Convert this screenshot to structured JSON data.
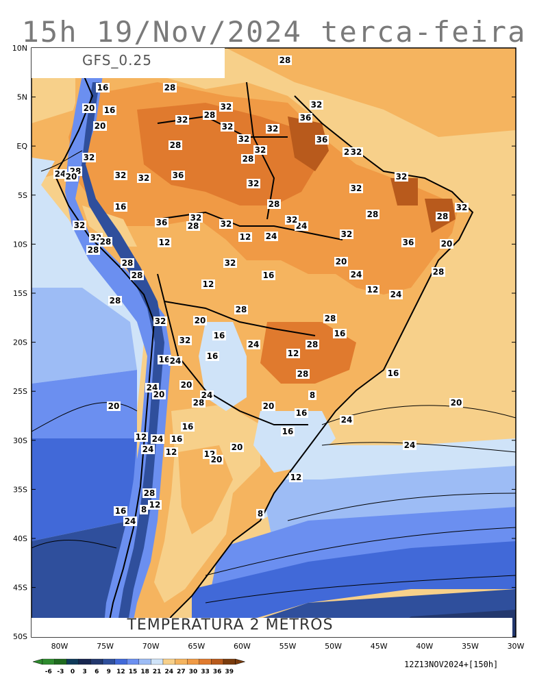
{
  "title": "15h 19/Nov/2024 terca-feira",
  "model": "GFS_0.25",
  "field": "TEMPERATURA 2 METROS",
  "run": "12Z13NOV2024+[150h]",
  "lat_labels": [
    "10N",
    "5N",
    "EQ",
    "5S",
    "10S",
    "15S",
    "20S",
    "25S",
    "30S",
    "35S",
    "40S",
    "45S",
    "50S"
  ],
  "lon_labels": [
    "80W",
    "75W",
    "70W",
    "65W",
    "60W",
    "55W",
    "50W",
    "45W",
    "40W",
    "35W",
    "30W"
  ],
  "colorbar": {
    "labels": [
      "-6",
      "-3",
      "0",
      "3",
      "6",
      "9",
      "12",
      "15",
      "18",
      "21",
      "24",
      "27",
      "30",
      "33",
      "36",
      "39"
    ],
    "colors": [
      "#2e8b2e",
      "#1f6a1f",
      "#0f3a5a",
      "#17264f",
      "#23386e",
      "#2f4f9c",
      "#4169d8",
      "#6b8ff0",
      "#9dbcf5",
      "#cfe3f8",
      "#f7d08a",
      "#f5b45f",
      "#f09a45",
      "#e07a2e",
      "#b85a1c",
      "#7a3c0d"
    ]
  },
  "contour_labels": [
    {
      "t": "28"
    },
    {
      "t": "16"
    },
    {
      "t": "28"
    },
    {
      "t": "20"
    },
    {
      "t": "16"
    },
    {
      "t": "32"
    },
    {
      "t": "28"
    },
    {
      "t": "32"
    },
    {
      "t": "32"
    },
    {
      "t": "36"
    },
    {
      "t": "20"
    },
    {
      "t": "32"
    },
    {
      "t": "32"
    },
    {
      "t": "36"
    },
    {
      "t": "32"
    },
    {
      "t": "28"
    },
    {
      "t": "32"
    },
    {
      "t": "2"
    },
    {
      "t": "32"
    },
    {
      "t": "24"
    },
    {
      "t": "28"
    },
    {
      "t": "20"
    },
    {
      "t": "32"
    },
    {
      "t": "28"
    },
    {
      "t": "32"
    },
    {
      "t": "32"
    },
    {
      "t": "36"
    },
    {
      "t": "32"
    },
    {
      "t": "32"
    },
    {
      "t": "32"
    },
    {
      "t": "16"
    },
    {
      "t": "28"
    },
    {
      "t": "28"
    },
    {
      "t": "32"
    },
    {
      "t": "28"
    },
    {
      "t": "32"
    },
    {
      "t": "36"
    },
    {
      "t": "24"
    },
    {
      "t": "28"
    },
    {
      "t": "32"
    },
    {
      "t": "32"
    },
    {
      "t": "32"
    },
    {
      "t": "12"
    },
    {
      "t": "24"
    },
    {
      "t": "32"
    },
    {
      "t": "36"
    },
    {
      "t": "20"
    },
    {
      "t": "32"
    },
    {
      "t": "28"
    },
    {
      "t": "12"
    },
    {
      "t": "28"
    },
    {
      "t": "32"
    },
    {
      "t": "28"
    },
    {
      "t": "20"
    },
    {
      "t": "28"
    },
    {
      "t": "24"
    },
    {
      "t": "12"
    },
    {
      "t": "16"
    },
    {
      "t": "28"
    },
    {
      "t": "12"
    },
    {
      "t": "24"
    },
    {
      "t": "28"
    },
    {
      "t": "32"
    },
    {
      "t": "28"
    },
    {
      "t": "20"
    },
    {
      "t": "28"
    },
    {
      "t": "16"
    },
    {
      "t": "16"
    },
    {
      "t": "32"
    },
    {
      "t": "24"
    },
    {
      "t": "28"
    },
    {
      "t": "12"
    },
    {
      "t": "16"
    },
    {
      "t": "16"
    },
    {
      "t": "24"
    },
    {
      "t": "28"
    },
    {
      "t": "16"
    },
    {
      "t": "20"
    },
    {
      "t": "24"
    },
    {
      "t": "20"
    },
    {
      "t": "24"
    },
    {
      "t": "28"
    },
    {
      "t": "8"
    },
    {
      "t": "20"
    },
    {
      "t": "16"
    },
    {
      "t": "20"
    },
    {
      "t": "24"
    },
    {
      "t": "20"
    },
    {
      "t": "16"
    },
    {
      "t": "12"
    },
    {
      "t": "24"
    },
    {
      "t": "16"
    },
    {
      "t": "24"
    },
    {
      "t": "12"
    },
    {
      "t": "16"
    },
    {
      "t": "20"
    },
    {
      "t": "12"
    },
    {
      "t": "20"
    },
    {
      "t": "24"
    },
    {
      "t": "12"
    },
    {
      "t": "28"
    },
    {
      "t": "12"
    },
    {
      "t": "8"
    },
    {
      "t": "16"
    },
    {
      "t": "24"
    },
    {
      "t": "8"
    }
  ]
}
